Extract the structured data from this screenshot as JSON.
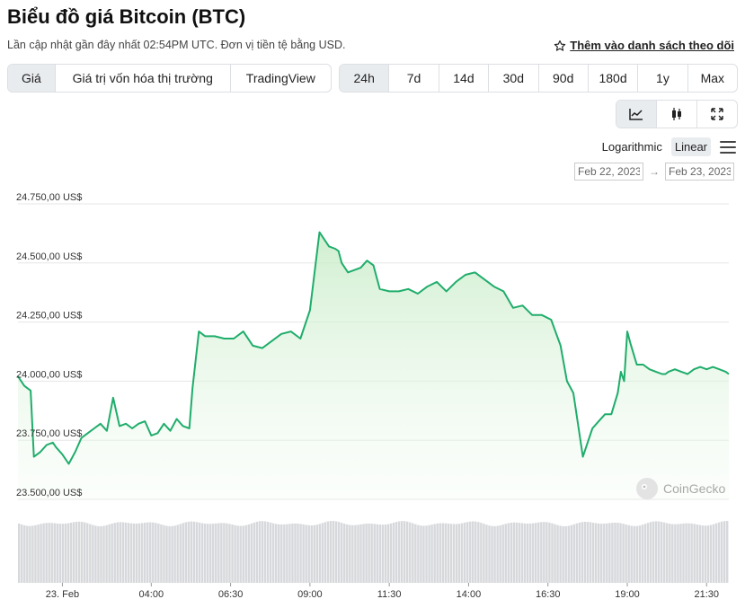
{
  "header": {
    "title": "Biểu đồ giá Bitcoin (BTC)",
    "subtitle": "Lần cập nhật gần đây nhất 02:54PM UTC. Đơn vị tiền tệ bằng USD.",
    "watchlist_label": "Thêm vào danh sách theo dõi"
  },
  "view_tabs": [
    {
      "label": "Giá",
      "active": true
    },
    {
      "label": "Giá trị vốn hóa thị trường",
      "active": false
    },
    {
      "label": "TradingView",
      "active": false
    }
  ],
  "range_tabs": [
    {
      "label": "24h",
      "active": true
    },
    {
      "label": "7d",
      "active": false
    },
    {
      "label": "14d",
      "active": false
    },
    {
      "label": "30d",
      "active": false
    },
    {
      "label": "90d",
      "active": false
    },
    {
      "label": "180d",
      "active": false
    },
    {
      "label": "1y",
      "active": false
    },
    {
      "label": "Max",
      "active": false
    }
  ],
  "chart_tools": [
    {
      "icon": "line-chart-icon",
      "active": true
    },
    {
      "icon": "candlestick-icon",
      "active": false
    },
    {
      "icon": "fullscreen-icon",
      "active": false
    }
  ],
  "scale": {
    "logarithmic": "Logarithmic",
    "linear": "Linear",
    "active": "linear"
  },
  "date_range": {
    "from": "Feb 22, 2023",
    "to": "Feb 23, 2023",
    "arrow": "→"
  },
  "watermark": "CoinGecko",
  "colors": {
    "line": "#1fad6b",
    "fill_top": "#c8ecc8",
    "volume": "#d6d8db",
    "grid": "#e6e6e6"
  },
  "chart_data": {
    "type": "area",
    "title": "",
    "ylabel": "",
    "xlabel": "",
    "ylim": [
      23500,
      24750
    ],
    "y_ticks": [
      {
        "value": 24750,
        "label": "24.750,00 US$"
      },
      {
        "value": 24500,
        "label": "24.500,00 US$"
      },
      {
        "value": 24250,
        "label": "24.250,00 US$"
      },
      {
        "value": 24000,
        "label": "24.000,00 US$"
      },
      {
        "value": 23750,
        "label": "23.750,00 US$"
      },
      {
        "value": 23500,
        "label": "23.500,00 US$"
      }
    ],
    "x_ticks": [
      {
        "t": 1.2,
        "label": "23. Feb"
      },
      {
        "t": 4.0,
        "label": "04:00"
      },
      {
        "t": 6.5,
        "label": "06:30"
      },
      {
        "t": 9.0,
        "label": "09:00"
      },
      {
        "t": 11.5,
        "label": "11:30"
      },
      {
        "t": 14.0,
        "label": "14:00"
      },
      {
        "t": 16.5,
        "label": "16:30"
      },
      {
        "t": 19.0,
        "label": "19:00"
      },
      {
        "t": 21.5,
        "label": "21:30"
      }
    ],
    "x_range": [
      -0.2,
      22.2
    ],
    "series": [
      {
        "name": "",
        "t": [
          -0.2,
          0.0,
          0.2,
          0.3,
          0.5,
          0.7,
          0.9,
          1.0,
          1.2,
          1.4,
          1.6,
          1.8,
          2.0,
          2.2,
          2.4,
          2.6,
          2.8,
          3.0,
          3.2,
          3.4,
          3.6,
          3.8,
          4.0,
          4.2,
          4.4,
          4.6,
          4.8,
          5.0,
          5.2,
          5.3,
          5.5,
          5.7,
          6.0,
          6.3,
          6.6,
          6.9,
          7.2,
          7.5,
          7.8,
          8.1,
          8.4,
          8.7,
          9.0,
          9.3,
          9.6,
          9.8,
          9.9,
          10.0,
          10.2,
          10.4,
          10.6,
          10.8,
          11.0,
          11.2,
          11.5,
          11.8,
          12.1,
          12.4,
          12.7,
          13.0,
          13.3,
          13.6,
          13.9,
          14.2,
          14.5,
          14.8,
          15.1,
          15.4,
          15.7,
          16.0,
          16.3,
          16.6,
          16.9,
          17.1,
          17.3,
          17.6,
          17.9,
          18.1,
          18.3,
          18.5,
          18.7,
          18.8,
          18.9,
          19.0,
          19.1,
          19.3,
          19.5,
          19.7,
          19.9,
          20.1,
          20.2,
          20.3,
          20.5,
          20.7,
          20.9,
          21.1,
          21.3,
          21.5,
          21.7,
          21.9,
          22.1,
          22.2
        ],
        "values": [
          24020,
          23980,
          23960,
          23680,
          23700,
          23730,
          23740,
          23720,
          23690,
          23650,
          23700,
          23760,
          23780,
          23800,
          23820,
          23790,
          23930,
          23810,
          23820,
          23800,
          23820,
          23830,
          23770,
          23780,
          23820,
          23790,
          23840,
          23810,
          23800,
          23970,
          24210,
          24190,
          24190,
          24180,
          24180,
          24210,
          24150,
          24140,
          24170,
          24200,
          24210,
          24180,
          24300,
          24630,
          24570,
          24560,
          24550,
          24500,
          24460,
          24470,
          24480,
          24510,
          24490,
          24390,
          24380,
          24380,
          24390,
          24370,
          24400,
          24420,
          24380,
          24420,
          24450,
          24460,
          24430,
          24400,
          24380,
          24310,
          24320,
          24280,
          24280,
          24260,
          24150,
          24000,
          23950,
          23680,
          23800,
          23830,
          23860,
          23860,
          23950,
          24040,
          24000,
          24210,
          24160,
          24070,
          24070,
          24050,
          24040,
          24030,
          24030,
          24040,
          24050,
          24040,
          24030,
          24050,
          24060,
          24050,
          24060,
          24050,
          24040,
          24030
        ]
      }
    ]
  }
}
